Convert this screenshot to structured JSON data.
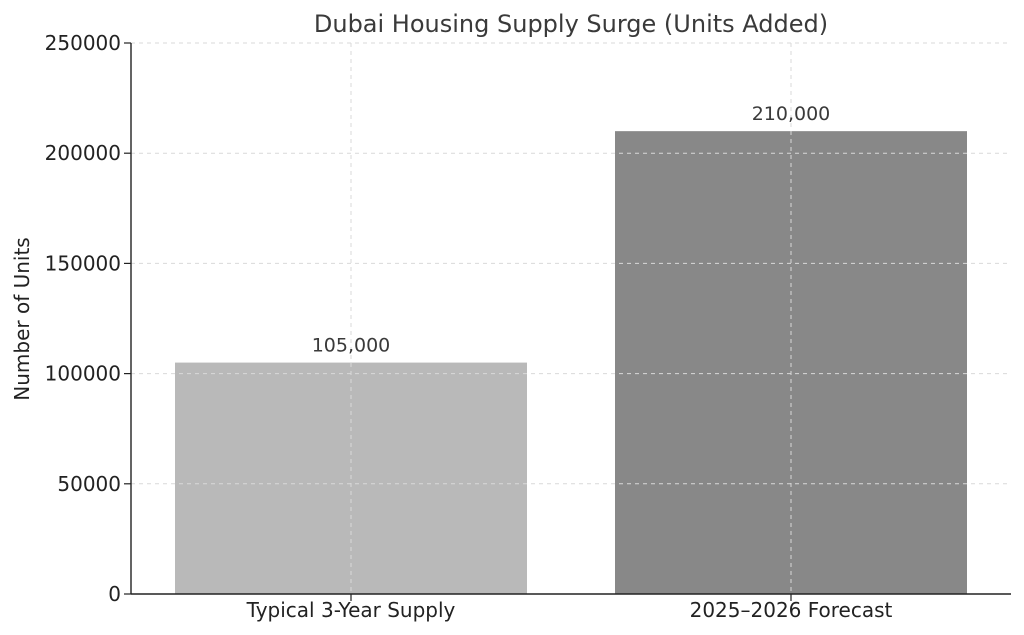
{
  "chart_data": {
    "type": "bar",
    "title": "Dubai Housing Supply Surge (Units Added)",
    "xlabel": "",
    "ylabel": "Number of Units",
    "categories": [
      "Typical 3-Year Supply",
      "2025–2026 Forecast"
    ],
    "values": [
      105000,
      210000
    ],
    "data_labels": [
      "105,000",
      "210,000"
    ],
    "bar_colors": [
      "#b9b9b9",
      "#888888"
    ],
    "ylim": [
      0,
      250000
    ],
    "yticks": [
      0,
      50000,
      100000,
      150000,
      200000,
      250000
    ],
    "ytick_labels": [
      "0",
      "50000",
      "100000",
      "150000",
      "200000",
      "250000"
    ],
    "grid": true,
    "legend": "none"
  }
}
